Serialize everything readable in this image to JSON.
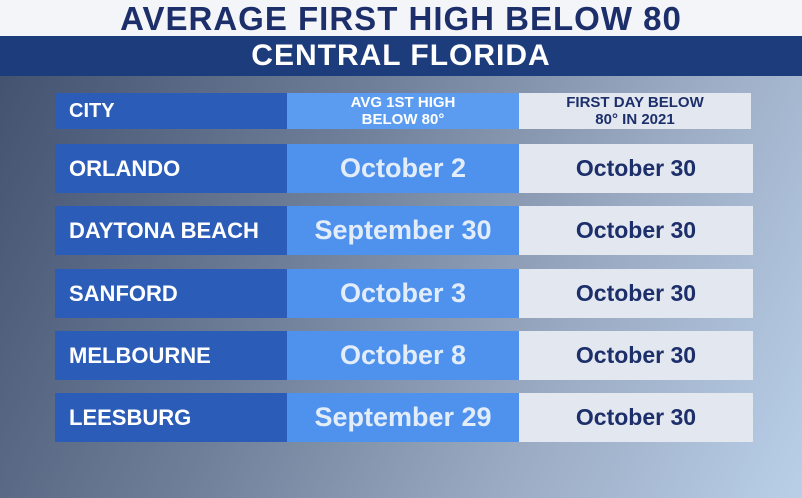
{
  "header": {
    "title": "AVERAGE FIRST HIGH BELOW 80",
    "subtitle": "CENTRAL FLORIDA"
  },
  "table": {
    "columns": [
      "CITY",
      "AVG 1ST HIGH BELOW 80°",
      "FIRST DAY BELOW 80° IN 2021"
    ],
    "rows": [
      [
        "ORLANDO",
        "October 2",
        "October 30"
      ],
      [
        "DAYTONA BEACH",
        "September 30",
        "October 30"
      ],
      [
        "SANFORD",
        "October 3",
        "October 30"
      ],
      [
        "MELBOURNE",
        "October 8",
        "October 30"
      ],
      [
        "LEESBURG",
        "September 29",
        "October 30"
      ]
    ]
  }
}
